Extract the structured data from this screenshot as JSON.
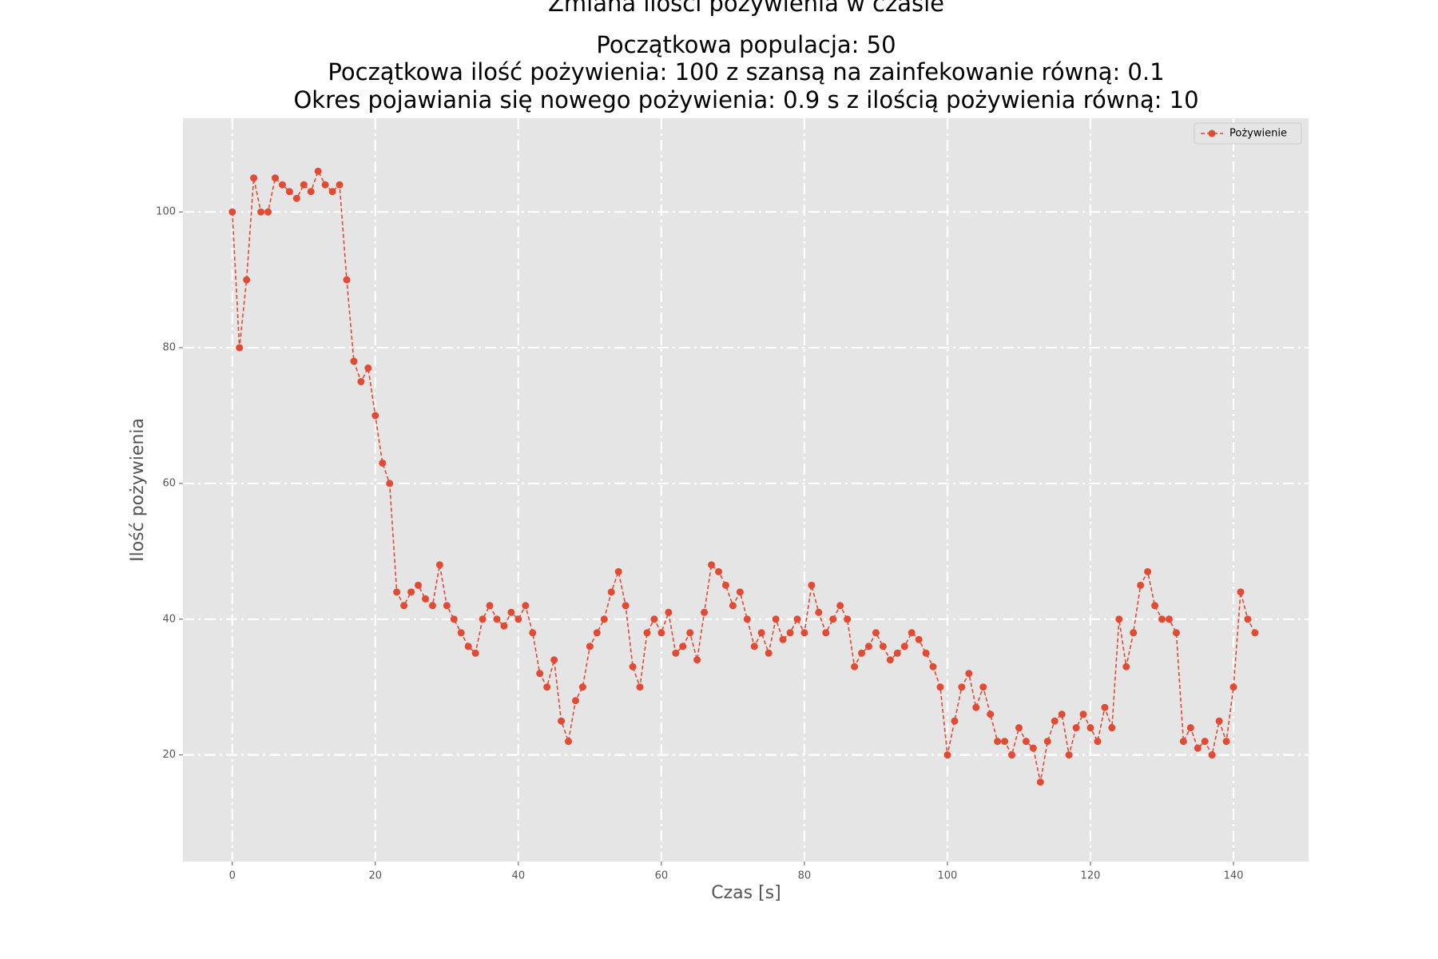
{
  "chart_data": {
    "type": "line",
    "title": "Zmiana ilości pożywienia w czasie",
    "subtitle": [
      "Początkowa populacja: 50",
      "Początkowa ilość pożywienia: 100 z szansą na zainfekowanie równą: 0.1",
      "Okres pojawiania się nowego pożywienia: 0.9 s z ilością pożywienia równą: 10"
    ],
    "x_label": "Czas [s]",
    "y_label": "Ilość pożywienia",
    "xlim": [
      -6.9,
      150.5
    ],
    "ylim": [
      4.3,
      113.8
    ],
    "xticks": [
      0,
      20,
      40,
      60,
      80,
      100,
      120,
      140
    ],
    "yticks": [
      20,
      40,
      60,
      80,
      100
    ],
    "grid": true,
    "legend": "upper right",
    "x": [
      0,
      1,
      2,
      3,
      4,
      5,
      6,
      7,
      8,
      9,
      10,
      11,
      12,
      13,
      14,
      15,
      16,
      17,
      18,
      19,
      20,
      21,
      22,
      23,
      24,
      25,
      26,
      27,
      28,
      29,
      30,
      31,
      32,
      33,
      34,
      35,
      36,
      37,
      38,
      39,
      40,
      41,
      42,
      43,
      44,
      45,
      46,
      47,
      48,
      49,
      50,
      51,
      52,
      53,
      54,
      55,
      56,
      57,
      58,
      59,
      60,
      61,
      62,
      63,
      64,
      65,
      66,
      67,
      68,
      69,
      70,
      71,
      72,
      73,
      74,
      75,
      76,
      77,
      78,
      79,
      80,
      81,
      82,
      83,
      84,
      85,
      86,
      87,
      88,
      89,
      90,
      91,
      92,
      93,
      94,
      95,
      96,
      97,
      98,
      99,
      100,
      101,
      102,
      103,
      104,
      105,
      106,
      107,
      108,
      109,
      110,
      111,
      112,
      113,
      114,
      115,
      116,
      117,
      118,
      119,
      120,
      121,
      122,
      123,
      124,
      125,
      126,
      127,
      128,
      129,
      130,
      131,
      132,
      133,
      134,
      135,
      136,
      137,
      138,
      139,
      140,
      141,
      142,
      143
    ],
    "series": [
      {
        "name": "Pożywienie",
        "color": "#e24a33",
        "values": [
          100,
          80,
          90,
          105,
          100,
          100,
          105,
          104,
          103,
          102,
          104,
          103,
          106,
          104,
          103,
          104,
          90,
          78,
          75,
          77,
          70,
          63,
          60,
          44,
          42,
          44,
          45,
          43,
          42,
          48,
          42,
          40,
          38,
          36,
          35,
          40,
          42,
          40,
          39,
          41,
          40,
          42,
          38,
          32,
          30,
          34,
          25,
          22,
          28,
          30,
          36,
          38,
          40,
          44,
          47,
          42,
          33,
          30,
          38,
          40,
          38,
          41,
          35,
          36,
          38,
          34,
          41,
          48,
          47,
          45,
          42,
          44,
          40,
          36,
          38,
          35,
          40,
          37,
          38,
          40,
          38,
          45,
          41,
          38,
          40,
          42,
          40,
          33,
          35,
          36,
          38,
          36,
          34,
          35,
          36,
          38,
          37,
          35,
          33,
          30,
          20,
          25,
          30,
          32,
          27,
          30,
          26,
          22,
          22,
          20,
          24,
          22,
          21,
          16,
          22,
          25,
          26,
          20,
          24,
          26,
          24,
          22,
          27,
          24,
          40,
          33,
          38,
          45,
          47,
          42,
          40,
          40,
          38,
          22,
          24,
          21,
          22,
          20,
          25,
          22,
          30,
          44,
          40,
          38
        ]
      }
    ]
  }
}
